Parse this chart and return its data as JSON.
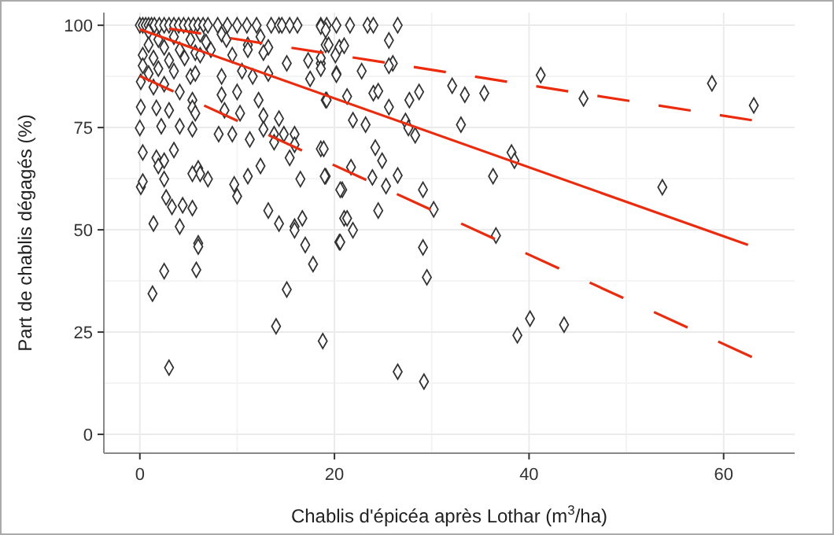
{
  "chart_data": {
    "type": "scatter",
    "xlabel": "Chablis d'épicéa après Lothar (m$^{3}$/ha)",
    "ylabel": "Part de chablis dégagés (%)",
    "xlim": [
      -3.7,
      67.3
    ],
    "ylim": [
      -4.6,
      103.1
    ],
    "xticks": [
      0,
      20,
      40,
      60
    ],
    "yticks": [
      0,
      25,
      50,
      75,
      100
    ],
    "grid": true,
    "series": [
      {
        "color": "#333333",
        "marker": "diamond",
        "x": [
          0,
          0.3,
          0.6,
          0.9,
          1.2,
          1.5,
          2,
          2.5,
          3,
          3.5,
          4,
          4.5,
          5,
          5.5,
          6,
          6.5,
          7,
          8,
          9,
          10,
          11,
          12,
          13.5,
          14.3,
          14.6,
          15.4,
          16.2,
          18.6,
          19.2,
          20.2,
          21.6,
          23.4,
          24,
          26.5,
          18.6,
          19.1,
          12.4,
          8.4,
          6.2,
          0.9,
          1.9,
          3.5,
          5.2,
          6.8,
          8.9,
          11.1,
          13.2,
          0.9,
          2.5,
          4.1,
          5.7,
          7.3,
          0.3,
          1.4,
          3,
          4.6,
          6.2,
          9.5,
          11.1,
          12.7,
          15.1,
          17.3,
          18.6,
          19.1,
          20.5,
          0.3,
          1.9,
          3.5,
          0.9,
          5.2,
          5.7,
          8.4,
          10.5,
          11.6,
          13.2,
          17.5,
          20.2,
          0.1,
          1.4,
          2.5,
          4.1,
          5.4,
          5.4,
          8.4,
          10,
          12.2,
          19.1,
          0.1,
          1.7,
          3,
          5.7,
          8.7,
          10.3,
          12.7,
          14.3,
          0,
          2.2,
          4.1,
          5.4,
          8.1,
          9.5,
          11.3,
          12.7,
          13.8,
          14.8,
          15.9,
          13.8,
          15.9,
          18.6,
          0.3,
          1.7,
          2.5,
          1.9,
          3.5,
          6,
          6.2,
          7,
          5.4,
          9.7,
          11.1,
          12.4,
          15.4,
          16.5,
          19.1,
          20.8,
          0.1,
          0.3,
          2.5,
          10,
          2.7,
          3.3,
          4.4,
          5.4,
          13.2,
          1.4,
          4.1,
          14.3,
          15.9,
          6,
          6,
          2.5,
          5.8,
          1.3,
          3,
          15.9,
          16.7,
          17,
          17.8,
          20.5,
          21,
          15.1,
          14,
          18.8,
          19.4,
          21,
          25.6,
          18.6,
          20.1,
          18.6,
          20.2,
          22.8,
          26,
          25.6,
          19.2,
          21.3,
          24,
          24.5,
          25.6,
          27.7,
          28.7,
          32.1,
          33.4,
          35.4,
          21.9,
          23.2,
          27.3,
          27.6,
          28.3,
          33,
          38.2,
          38.5,
          18.9,
          24.2,
          24.9,
          19,
          21.7,
          23.9,
          25.3,
          26.5,
          29.1,
          36.3,
          20.6,
          30.2,
          24.5,
          21.3,
          21.9,
          20.6,
          29.1,
          36.6,
          29.5,
          40.1,
          43.6,
          38.8,
          26.5,
          29.2,
          41.2,
          45.6,
          58.8,
          63.1,
          53.7
        ],
        "values": [
          100,
          100,
          100,
          100,
          100,
          100,
          100,
          100,
          100,
          100,
          100,
          100,
          100,
          100,
          100,
          100,
          100,
          100,
          100,
          100,
          100,
          100,
          100,
          100,
          100,
          100,
          100,
          100,
          100,
          100,
          100,
          100,
          100,
          100,
          99.7,
          98.8,
          97.2,
          97.8,
          97.8,
          98.5,
          96.5,
          97.2,
          96.5,
          95.9,
          96.5,
          95.2,
          94.6,
          95.2,
          94.6,
          94,
          93.3,
          94,
          92.7,
          92,
          91.4,
          92,
          92.7,
          92.7,
          94,
          93.3,
          90.7,
          91.4,
          90.7,
          95.2,
          94.6,
          90.1,
          89.4,
          88.8,
          88.2,
          87.5,
          88.2,
          87.5,
          88.8,
          87.5,
          88.2,
          86.9,
          88.2,
          86.2,
          84.9,
          85.6,
          83.7,
          81.7,
          79.8,
          83,
          83.7,
          81.7,
          81.7,
          80,
          79.8,
          79.2,
          78.5,
          79.2,
          78.5,
          77.9,
          77.2,
          74.9,
          75.3,
          75.3,
          74.6,
          73.4,
          73.4,
          72.1,
          74.6,
          73.4,
          73.4,
          73.4,
          71.4,
          70.8,
          69.8,
          68.9,
          67.6,
          66.9,
          65.6,
          69.5,
          65,
          63.7,
          62.4,
          63.7,
          61.1,
          63.1,
          65.6,
          67.6,
          62.4,
          63.1,
          59.8,
          60.5,
          61.8,
          62.4,
          58.2,
          57.9,
          55.6,
          56,
          55.3,
          54.7,
          51.5,
          50.8,
          51.5,
          50.8,
          46.7,
          45.9,
          39.9,
          40.2,
          34.4,
          16.3,
          49.9,
          52.8,
          46.3,
          41.6,
          47,
          52.8,
          35.4,
          26.4,
          22.8,
          95.2,
          95,
          96.3,
          92,
          92.7,
          89.4,
          87.9,
          88.8,
          90.7,
          90.1,
          81.7,
          82.6,
          83.4,
          83.9,
          80,
          81.7,
          83.7,
          85.2,
          83,
          83.4,
          76.8,
          75.7,
          76.6,
          74.9,
          73.1,
          75.7,
          68.9,
          66.9,
          69.8,
          70.1,
          66.9,
          63.1,
          65.3,
          62.8,
          60.7,
          63.3,
          59.8,
          63.1,
          59.8,
          55,
          54.7,
          52.8,
          49.9,
          47,
          45.7,
          48.6,
          38.4,
          28.3,
          26.8,
          24.2,
          15.3,
          12.9,
          87.8,
          82.1,
          85.8,
          80.4,
          60.4
        ]
      },
      {
        "type": "line",
        "color": "#ee2a0c",
        "line_style": "solid",
        "marker": "none",
        "x": [
          0,
          62.5
        ],
        "values": [
          99,
          46.3
        ]
      },
      {
        "type": "line",
        "color": "#ee2a0c",
        "line_style": "dashed",
        "marker": "none",
        "x": [
          3,
          62.9
        ],
        "values": [
          99.2,
          76.8
        ]
      },
      {
        "type": "line",
        "color": "#ee2a0c",
        "line_style": "dashed",
        "marker": "none",
        "x": [
          0,
          62.9
        ],
        "values": [
          87.6,
          18.9
        ]
      }
    ]
  }
}
